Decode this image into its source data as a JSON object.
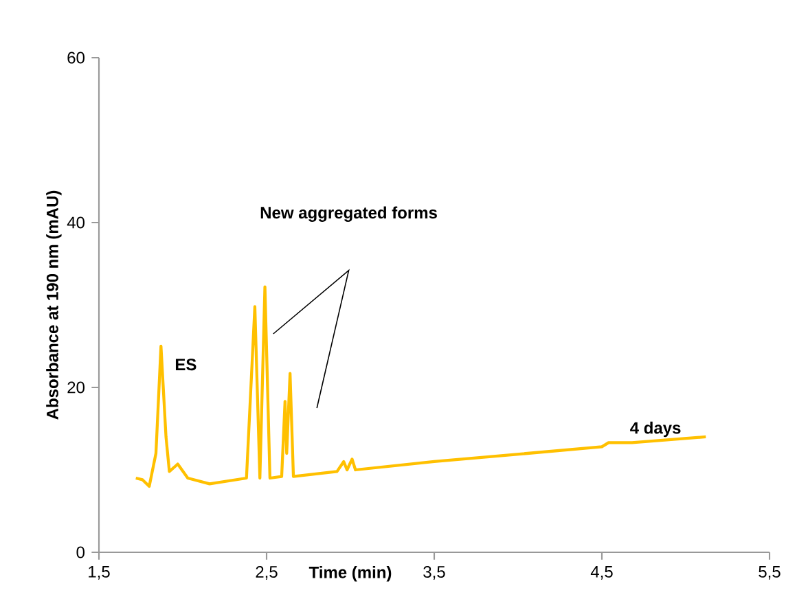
{
  "chart_data": {
    "type": "line",
    "xlabel": "Time (min)",
    "ylabel": "Absorbance at 190 nm (mAU)",
    "xlim": [
      1.5,
      5.5
    ],
    "ylim": [
      0,
      60
    ],
    "xticks": [
      {
        "value": 1.5,
        "label": "1,5"
      },
      {
        "value": 2.5,
        "label": "2,5"
      },
      {
        "value": 3.5,
        "label": "3,5"
      },
      {
        "value": 4.5,
        "label": "4,5"
      },
      {
        "value": 5.5,
        "label": "5,5"
      }
    ],
    "yticks": [
      0,
      20,
      40,
      60
    ],
    "grid": false,
    "marker": "none",
    "line_style": "solid",
    "series": [
      {
        "color": "#ffc000",
        "x": [
          1.72,
          1.76,
          1.8,
          1.84,
          1.87,
          1.9,
          1.92,
          1.97,
          2.03,
          2.16,
          2.38,
          2.43,
          2.46,
          2.49,
          2.52,
          2.59,
          2.61,
          2.62,
          2.64,
          2.66,
          2.92,
          2.96,
          2.98,
          3.01,
          3.03,
          3.5,
          4.5,
          4.54,
          4.68,
          5.12
        ],
        "values": [
          9,
          8.8,
          8,
          12,
          25,
          14,
          9.8,
          10.7,
          9,
          8.3,
          9,
          29.8,
          9,
          32.2,
          9,
          9.2,
          18.3,
          12,
          21.7,
          9.2,
          9.8,
          11,
          10,
          11.3,
          10,
          11,
          12.8,
          13.3,
          13.3,
          14
        ]
      }
    ],
    "annotations": [
      {
        "text": "ES",
        "x": 1.87,
        "y": 25
      },
      "New aggregated forms",
      "4 days"
    ]
  }
}
